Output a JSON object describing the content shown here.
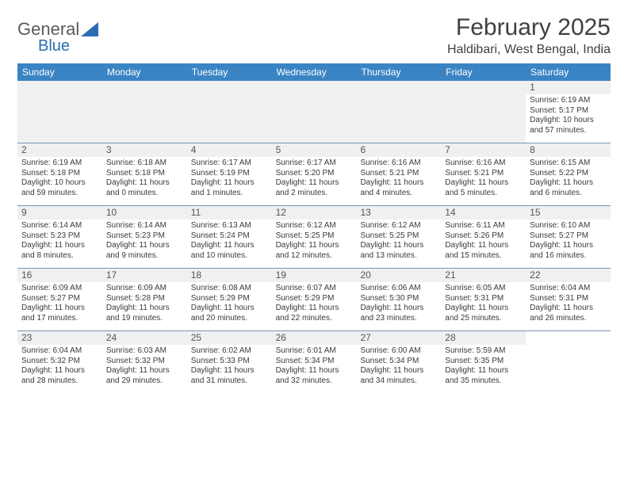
{
  "logo": {
    "text1": "General",
    "text2": "Blue",
    "triangle_color": "#2a6db5"
  },
  "title": "February 2025",
  "location": "Haldibari, West Bengal, India",
  "header_bg": "#3b84c4",
  "day_headers": [
    "Sunday",
    "Monday",
    "Tuesday",
    "Wednesday",
    "Thursday",
    "Friday",
    "Saturday"
  ],
  "layout": {
    "weeks": 5,
    "first_day_column": 6,
    "days_in_month": 28
  },
  "days": {
    "1": {
      "sunrise": "6:19 AM",
      "sunset": "5:17 PM",
      "daylight_h": 10,
      "daylight_m": 57
    },
    "2": {
      "sunrise": "6:19 AM",
      "sunset": "5:18 PM",
      "daylight_h": 10,
      "daylight_m": 59
    },
    "3": {
      "sunrise": "6:18 AM",
      "sunset": "5:18 PM",
      "daylight_h": 11,
      "daylight_m": 0
    },
    "4": {
      "sunrise": "6:17 AM",
      "sunset": "5:19 PM",
      "daylight_h": 11,
      "daylight_m": 1
    },
    "5": {
      "sunrise": "6:17 AM",
      "sunset": "5:20 PM",
      "daylight_h": 11,
      "daylight_m": 2
    },
    "6": {
      "sunrise": "6:16 AM",
      "sunset": "5:21 PM",
      "daylight_h": 11,
      "daylight_m": 4
    },
    "7": {
      "sunrise": "6:16 AM",
      "sunset": "5:21 PM",
      "daylight_h": 11,
      "daylight_m": 5
    },
    "8": {
      "sunrise": "6:15 AM",
      "sunset": "5:22 PM",
      "daylight_h": 11,
      "daylight_m": 6
    },
    "9": {
      "sunrise": "6:14 AM",
      "sunset": "5:23 PM",
      "daylight_h": 11,
      "daylight_m": 8
    },
    "10": {
      "sunrise": "6:14 AM",
      "sunset": "5:23 PM",
      "daylight_h": 11,
      "daylight_m": 9
    },
    "11": {
      "sunrise": "6:13 AM",
      "sunset": "5:24 PM",
      "daylight_h": 11,
      "daylight_m": 10
    },
    "12": {
      "sunrise": "6:12 AM",
      "sunset": "5:25 PM",
      "daylight_h": 11,
      "daylight_m": 12
    },
    "13": {
      "sunrise": "6:12 AM",
      "sunset": "5:25 PM",
      "daylight_h": 11,
      "daylight_m": 13
    },
    "14": {
      "sunrise": "6:11 AM",
      "sunset": "5:26 PM",
      "daylight_h": 11,
      "daylight_m": 15
    },
    "15": {
      "sunrise": "6:10 AM",
      "sunset": "5:27 PM",
      "daylight_h": 11,
      "daylight_m": 16
    },
    "16": {
      "sunrise": "6:09 AM",
      "sunset": "5:27 PM",
      "daylight_h": 11,
      "daylight_m": 17
    },
    "17": {
      "sunrise": "6:09 AM",
      "sunset": "5:28 PM",
      "daylight_h": 11,
      "daylight_m": 19
    },
    "18": {
      "sunrise": "6:08 AM",
      "sunset": "5:29 PM",
      "daylight_h": 11,
      "daylight_m": 20
    },
    "19": {
      "sunrise": "6:07 AM",
      "sunset": "5:29 PM",
      "daylight_h": 11,
      "daylight_m": 22
    },
    "20": {
      "sunrise": "6:06 AM",
      "sunset": "5:30 PM",
      "daylight_h": 11,
      "daylight_m": 23
    },
    "21": {
      "sunrise": "6:05 AM",
      "sunset": "5:31 PM",
      "daylight_h": 11,
      "daylight_m": 25
    },
    "22": {
      "sunrise": "6:04 AM",
      "sunset": "5:31 PM",
      "daylight_h": 11,
      "daylight_m": 26
    },
    "23": {
      "sunrise": "6:04 AM",
      "sunset": "5:32 PM",
      "daylight_h": 11,
      "daylight_m": 28
    },
    "24": {
      "sunrise": "6:03 AM",
      "sunset": "5:32 PM",
      "daylight_h": 11,
      "daylight_m": 29
    },
    "25": {
      "sunrise": "6:02 AM",
      "sunset": "5:33 PM",
      "daylight_h": 11,
      "daylight_m": 31
    },
    "26": {
      "sunrise": "6:01 AM",
      "sunset": "5:34 PM",
      "daylight_h": 11,
      "daylight_m": 32
    },
    "27": {
      "sunrise": "6:00 AM",
      "sunset": "5:34 PM",
      "daylight_h": 11,
      "daylight_m": 34
    },
    "28": {
      "sunrise": "5:59 AM",
      "sunset": "5:35 PM",
      "daylight_h": 11,
      "daylight_m": 35
    }
  },
  "labels": {
    "sunrise": "Sunrise:",
    "sunset": "Sunset:",
    "daylight_prefix": "Daylight:",
    "hours_word": "hours",
    "and_word": "and",
    "minutes_word": "minutes."
  }
}
